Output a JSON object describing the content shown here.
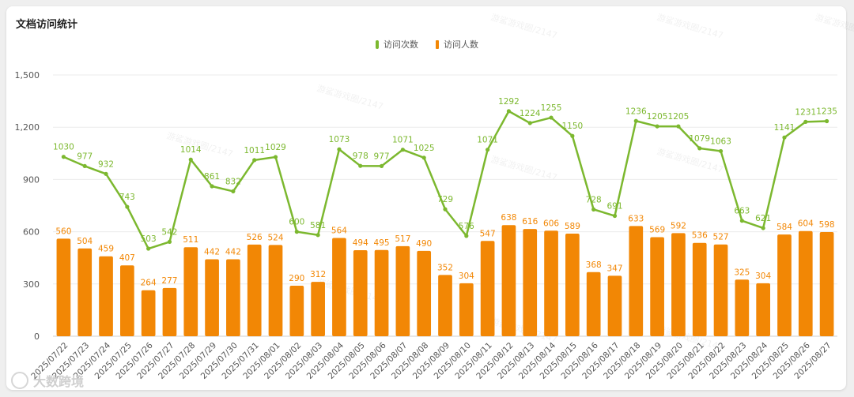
{
  "chart_data": {
    "type": "bar",
    "title": "文档访问统计",
    "categories": [
      "2025/07/22",
      "2025/07/23",
      "2025/07/24",
      "2025/07/25",
      "2025/07/26",
      "2025/07/27",
      "2025/07/28",
      "2025/07/29",
      "2025/07/30",
      "2025/07/31",
      "2025/08/01",
      "2025/08/02",
      "2025/08/03",
      "2025/08/04",
      "2025/08/05",
      "2025/08/06",
      "2025/08/07",
      "2025/08/08",
      "2025/08/09",
      "2025/08/10",
      "2025/08/11",
      "2025/08/12",
      "2025/08/13",
      "2025/08/14",
      "2025/08/15",
      "2025/08/16",
      "2025/08/17",
      "2025/08/18",
      "2025/08/19",
      "2025/08/20",
      "2025/08/21",
      "2025/08/22",
      "2025/08/23",
      "2025/08/24",
      "2025/08/25",
      "2025/08/26",
      "2025/08/27"
    ],
    "series": [
      {
        "name": "访问次数",
        "type": "line",
        "color": "#7cb82f",
        "values": [
          1030,
          977,
          932,
          743,
          503,
          542,
          1014,
          861,
          832,
          1011,
          1029,
          600,
          581,
          1073,
          978,
          977,
          1071,
          1025,
          729,
          576,
          1071,
          1292,
          1224,
          1255,
          1150,
          728,
          691,
          1236,
          1205,
          1205,
          1079,
          1063,
          663,
          621,
          1141,
          1231,
          1235
        ]
      },
      {
        "name": "访问人数",
        "type": "bar",
        "color": "#f28705",
        "values": [
          560,
          504,
          459,
          407,
          264,
          277,
          511,
          442,
          442,
          526,
          524,
          290,
          312,
          564,
          494,
          495,
          517,
          490,
          352,
          304,
          547,
          638,
          616,
          606,
          589,
          368,
          347,
          633,
          569,
          592,
          536,
          527,
          325,
          304,
          584,
          604,
          598
        ]
      }
    ],
    "yticks": [
      "0",
      "300",
      "600",
      "900",
      "1,200",
      "1,500"
    ],
    "ylim": [
      0,
      1500
    ],
    "xlabel": "",
    "ylabel": "",
    "legend_position": "top-center",
    "watermark_text": "游鲨游戏圈/2147"
  },
  "brand": {
    "label": "大数跨境"
  }
}
